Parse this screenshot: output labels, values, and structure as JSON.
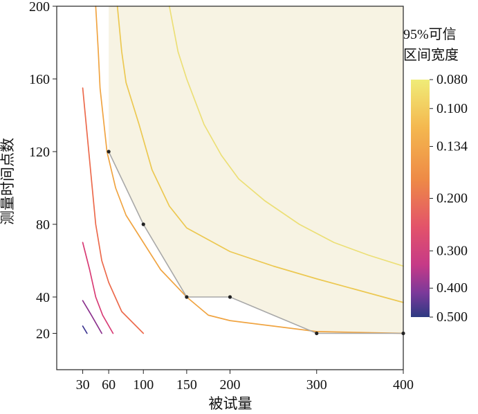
{
  "chart_data": {
    "type": "line",
    "title": "",
    "xlabel": "被试量",
    "ylabel": "测量时间点数",
    "xlim": [
      0,
      400
    ],
    "ylim": [
      0,
      200
    ],
    "x_ticks": [
      30,
      60,
      100,
      150,
      200,
      300,
      400
    ],
    "y_ticks": [
      20,
      40,
      80,
      120,
      160,
      200
    ],
    "grid": false,
    "legend": {
      "position": "right",
      "title_line1": "95%可信",
      "title_line2": "区间宽度",
      "ticks": [
        "0.080",
        "0.100",
        "0.134",
        "0.200",
        "0.300",
        "0.400",
        "0.500"
      ],
      "tick_values": [
        0.08,
        0.1,
        0.134,
        0.2,
        0.3,
        0.4,
        0.5
      ],
      "range": [
        0.08,
        0.5
      ]
    },
    "region": {
      "name": "",
      "color": "#f7f3e3",
      "boundary": [
        [
          60,
          200
        ],
        [
          60,
          120
        ],
        [
          100,
          80
        ],
        [
          150,
          40
        ],
        [
          200,
          40
        ],
        [
          300,
          20
        ],
        [
          400,
          20
        ],
        [
          400,
          200
        ]
      ]
    },
    "threshold_points": {
      "x": [
        60,
        100,
        150,
        200,
        300,
        400
      ],
      "y": [
        120,
        80,
        40,
        40,
        20,
        20
      ]
    },
    "contours": [
      {
        "level": 0.5,
        "color": "#3b3390",
        "points": [
          [
            30,
            24
          ],
          [
            35,
            20
          ]
        ]
      },
      {
        "level": 0.4,
        "color": "#8a2f8c",
        "points": [
          [
            30,
            38
          ],
          [
            40,
            30
          ],
          [
            52,
            20
          ]
        ]
      },
      {
        "level": 0.3,
        "color": "#d83a74",
        "points": [
          [
            30,
            70
          ],
          [
            38,
            55
          ],
          [
            45,
            40
          ],
          [
            53,
            30
          ],
          [
            65,
            20
          ]
        ]
      },
      {
        "level": 0.2,
        "color": "#ec6a4c",
        "points": [
          [
            30,
            155
          ],
          [
            35,
            130
          ],
          [
            40,
            105
          ],
          [
            45,
            80
          ],
          [
            52,
            60
          ],
          [
            60,
            48
          ],
          [
            75,
            32
          ],
          [
            100,
            20
          ]
        ]
      },
      {
        "level": 0.134,
        "color": "#f0a441",
        "points": [
          [
            45,
            200
          ],
          [
            48,
            175
          ],
          [
            50,
            155
          ],
          [
            58,
            120
          ],
          [
            68,
            100
          ],
          [
            80,
            85
          ],
          [
            100,
            70
          ],
          [
            120,
            55
          ],
          [
            150,
            40
          ],
          [
            175,
            30
          ],
          [
            200,
            27
          ],
          [
            250,
            24
          ],
          [
            300,
            21
          ],
          [
            400,
            20
          ]
        ]
      },
      {
        "level": 0.1,
        "color": "#ecc851",
        "points": [
          [
            70,
            200
          ],
          [
            75,
            175
          ],
          [
            80,
            158
          ],
          [
            95,
            135
          ],
          [
            110,
            110
          ],
          [
            130,
            90
          ],
          [
            150,
            78
          ],
          [
            200,
            65
          ],
          [
            250,
            57
          ],
          [
            300,
            50
          ],
          [
            400,
            37
          ]
        ]
      },
      {
        "level": 0.08,
        "color": "#ecdf76",
        "points": [
          [
            130,
            200
          ],
          [
            140,
            175
          ],
          [
            150,
            160
          ],
          [
            170,
            135
          ],
          [
            190,
            118
          ],
          [
            210,
            105
          ],
          [
            240,
            93
          ],
          [
            280,
            80
          ],
          [
            320,
            70
          ],
          [
            360,
            63
          ],
          [
            400,
            57
          ]
        ]
      }
    ]
  }
}
